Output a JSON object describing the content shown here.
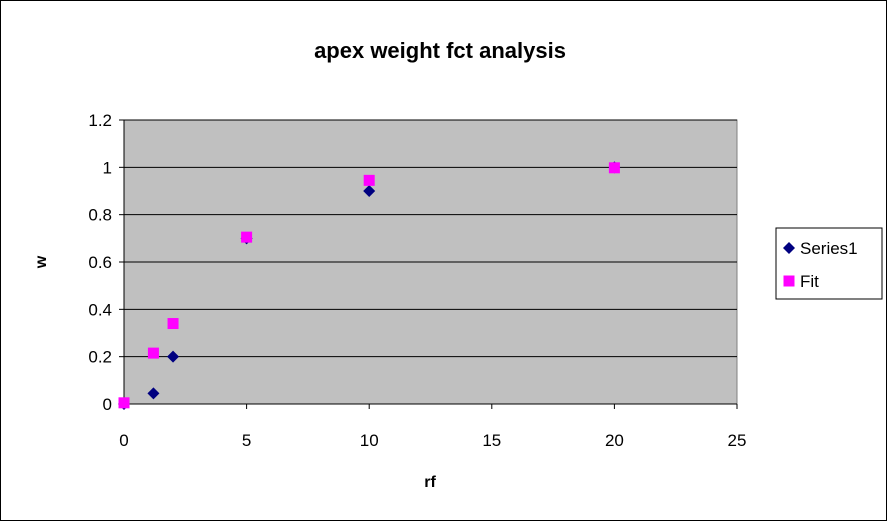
{
  "chart_data": {
    "type": "scatter",
    "title": "apex weight fct analysis",
    "xlabel": "rf",
    "ylabel": "w",
    "xlim": [
      0,
      25
    ],
    "ylim": [
      0,
      1.2
    ],
    "x_ticks": [
      "0",
      "5",
      "10",
      "15",
      "20",
      "25"
    ],
    "y_ticks": [
      "0",
      "0.2",
      "0.4",
      "0.6",
      "0.8",
      "1",
      "1.2"
    ],
    "grid": "horizontal",
    "legend_position": "right",
    "plot_background": "#c0c0c0",
    "series": [
      {
        "name": "Series1",
        "marker": "diamond",
        "color": "#000080",
        "points": [
          {
            "x": 0,
            "y": 0
          },
          {
            "x": 1.2,
            "y": 0.045
          },
          {
            "x": 2,
            "y": 0.2
          },
          {
            "x": 5,
            "y": 0.7
          },
          {
            "x": 10,
            "y": 0.9
          },
          {
            "x": 20,
            "y": 1.0
          }
        ]
      },
      {
        "name": "Fit",
        "marker": "square",
        "color": "#ff00ff",
        "points": [
          {
            "x": 0,
            "y": 0.005
          },
          {
            "x": 1.2,
            "y": 0.215
          },
          {
            "x": 2,
            "y": 0.34
          },
          {
            "x": 5,
            "y": 0.705
          },
          {
            "x": 10,
            "y": 0.945
          },
          {
            "x": 20,
            "y": 0.998
          }
        ]
      }
    ]
  }
}
